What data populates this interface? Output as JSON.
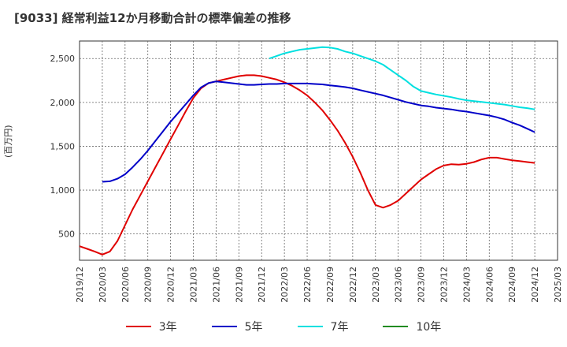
{
  "chart_data": {
    "type": "line",
    "title": "[9033]  経常利益12か月移動合計の標準偏差の推移",
    "ylabel": "(百万円)",
    "xlabel": "",
    "ylim": [
      200,
      2700
    ],
    "y_ticks": [
      500,
      1000,
      1500,
      2000,
      2500
    ],
    "y_tick_labels": [
      "500",
      "1,000",
      "1,500",
      "2,000",
      "2,500"
    ],
    "x_ticks": [
      "2019/12",
      "2020/03",
      "2020/06",
      "2020/09",
      "2020/12",
      "2021/03",
      "2021/06",
      "2021/09",
      "2021/12",
      "2022/03",
      "2022/06",
      "2022/09",
      "2022/12",
      "2023/03",
      "2023/06",
      "2023/09",
      "2023/12",
      "2024/03",
      "2024/06",
      "2024/09",
      "2024/12",
      "2025/03"
    ],
    "grid": true,
    "legend_position": "bottom",
    "series": [
      {
        "name": "3年",
        "color": "#e00000",
        "x": [
          "2019/12",
          "2020/01",
          "2020/02",
          "2020/03",
          "2020/04",
          "2020/05",
          "2020/06",
          "2020/07",
          "2020/08",
          "2020/09",
          "2020/10",
          "2020/11",
          "2020/12",
          "2021/01",
          "2021/02",
          "2021/03",
          "2021/04",
          "2021/05",
          "2021/06",
          "2021/07",
          "2021/08",
          "2021/09",
          "2021/10",
          "2021/11",
          "2021/12",
          "2022/01",
          "2022/02",
          "2022/03",
          "2022/04",
          "2022/05",
          "2022/06",
          "2022/07",
          "2022/08",
          "2022/09",
          "2022/10",
          "2022/11",
          "2022/12",
          "2023/01",
          "2023/02",
          "2023/03",
          "2023/04",
          "2023/05",
          "2023/06",
          "2023/07",
          "2023/08",
          "2023/09",
          "2023/10",
          "2023/11",
          "2023/12",
          "2024/01",
          "2024/02",
          "2024/03",
          "2024/04",
          "2024/05",
          "2024/06",
          "2024/07",
          "2024/08",
          "2024/09",
          "2024/10",
          "2024/11",
          "2024/12"
        ],
        "values": [
          360,
          330,
          300,
          265,
          300,
          420,
          600,
          780,
          940,
          1100,
          1260,
          1420,
          1580,
          1740,
          1900,
          2050,
          2160,
          2220,
          2240,
          2260,
          2280,
          2300,
          2310,
          2310,
          2300,
          2280,
          2260,
          2230,
          2190,
          2140,
          2080,
          2000,
          1910,
          1800,
          1680,
          1540,
          1380,
          1200,
          1000,
          830,
          800,
          830,
          880,
          960,
          1040,
          1120,
          1180,
          1240,
          1280,
          1295,
          1290,
          1300,
          1320,
          1350,
          1370,
          1370,
          1355,
          1340,
          1330,
          1320,
          1310
        ]
      },
      {
        "name": "5年",
        "color": "#0000c8",
        "x": [
          "2020/03",
          "2020/04",
          "2020/05",
          "2020/06",
          "2020/07",
          "2020/08",
          "2020/09",
          "2020/10",
          "2020/11",
          "2020/12",
          "2021/01",
          "2021/02",
          "2021/03",
          "2021/04",
          "2021/05",
          "2021/06",
          "2021/07",
          "2021/08",
          "2021/09",
          "2021/10",
          "2021/11",
          "2021/12",
          "2022/01",
          "2022/02",
          "2022/03",
          "2022/04",
          "2022/05",
          "2022/06",
          "2022/07",
          "2022/08",
          "2022/09",
          "2022/10",
          "2022/11",
          "2022/12",
          "2023/01",
          "2023/02",
          "2023/03",
          "2023/04",
          "2023/05",
          "2023/06",
          "2023/07",
          "2023/08",
          "2023/09",
          "2023/10",
          "2023/11",
          "2023/12",
          "2024/01",
          "2024/02",
          "2024/03",
          "2024/04",
          "2024/05",
          "2024/06",
          "2024/07",
          "2024/08",
          "2024/09",
          "2024/10",
          "2024/11",
          "2024/12"
        ],
        "values": [
          1095,
          1100,
          1130,
          1180,
          1260,
          1350,
          1450,
          1560,
          1670,
          1780,
          1880,
          1980,
          2080,
          2170,
          2220,
          2240,
          2230,
          2220,
          2210,
          2200,
          2200,
          2205,
          2210,
          2210,
          2215,
          2215,
          2215,
          2215,
          2210,
          2205,
          2195,
          2185,
          2175,
          2160,
          2140,
          2120,
          2100,
          2080,
          2055,
          2030,
          2005,
          1985,
          1965,
          1955,
          1940,
          1930,
          1920,
          1905,
          1895,
          1880,
          1865,
          1850,
          1830,
          1805,
          1770,
          1740,
          1700,
          1660
        ]
      },
      {
        "name": "7年",
        "color": "#00e0e0",
        "x": [
          "2022/01",
          "2022/02",
          "2022/03",
          "2022/04",
          "2022/05",
          "2022/06",
          "2022/07",
          "2022/08",
          "2022/09",
          "2022/10",
          "2022/11",
          "2022/12",
          "2023/01",
          "2023/02",
          "2023/03",
          "2023/04",
          "2023/05",
          "2023/06",
          "2023/07",
          "2023/08",
          "2023/09",
          "2023/10",
          "2023/11",
          "2023/12",
          "2024/01",
          "2024/02",
          "2024/03",
          "2024/04",
          "2024/05",
          "2024/06",
          "2024/07",
          "2024/08",
          "2024/09",
          "2024/10",
          "2024/11",
          "2024/12"
        ],
        "values": [
          2500,
          2530,
          2560,
          2580,
          2600,
          2610,
          2620,
          2630,
          2625,
          2610,
          2580,
          2560,
          2530,
          2500,
          2470,
          2430,
          2370,
          2310,
          2250,
          2180,
          2130,
          2110,
          2090,
          2075,
          2060,
          2040,
          2025,
          2015,
          2005,
          1995,
          1985,
          1975,
          1960,
          1945,
          1935,
          1920
        ]
      },
      {
        "name": "10年",
        "color": "#228b22",
        "x": [],
        "values": []
      }
    ]
  }
}
